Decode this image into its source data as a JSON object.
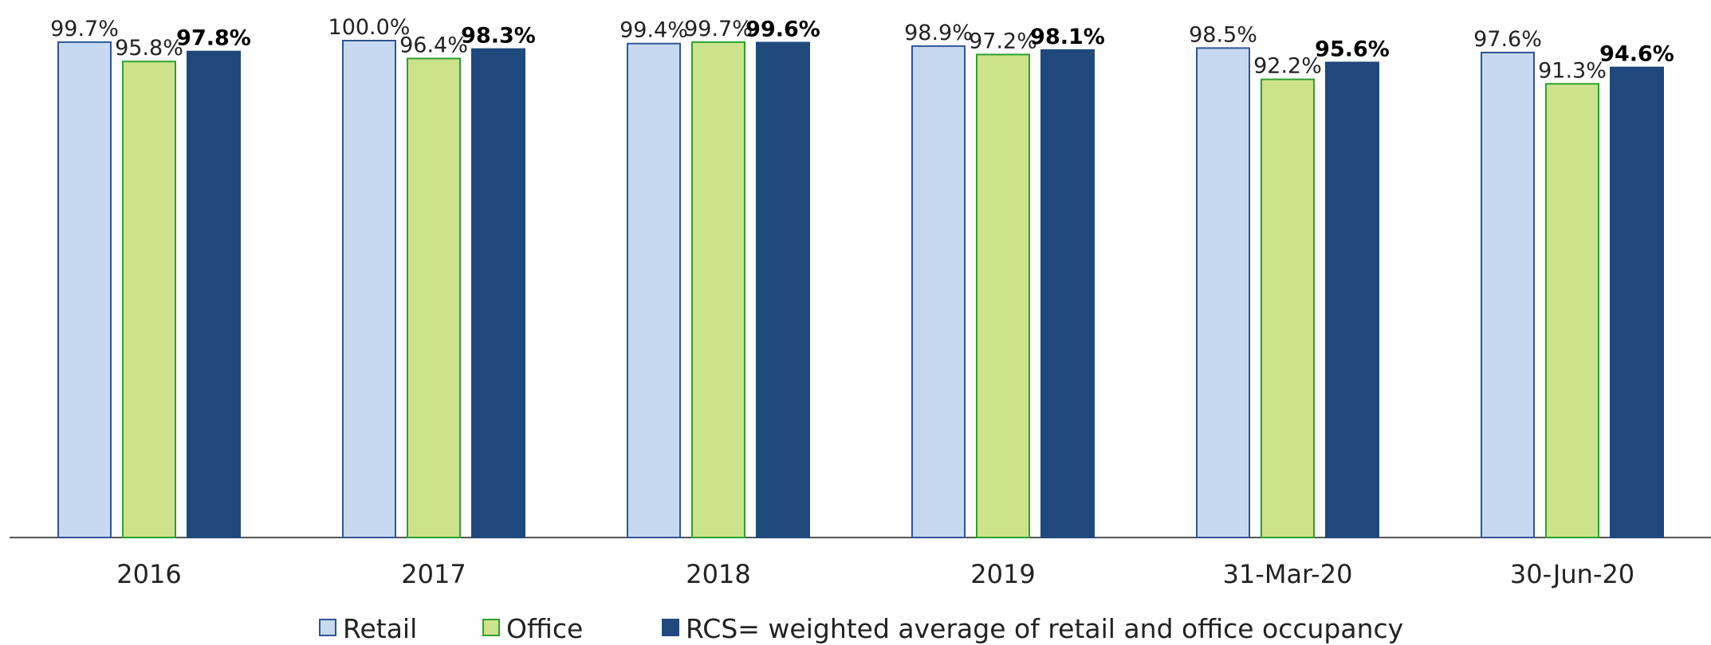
{
  "chart_data": {
    "type": "bar",
    "categories": [
      "2016",
      "2017",
      "2018",
      "2019",
      "31-Mar-20",
      "30-Jun-20"
    ],
    "series": [
      {
        "name": "Retail",
        "color": "#c6d9f1",
        "edge": "#2f5597",
        "values": [
          99.7,
          100.0,
          99.4,
          98.9,
          98.5,
          97.6
        ],
        "value_labels": [
          "99.7%",
          "100.0%",
          "99.4%",
          "98.9%",
          "98.5%",
          "97.6%"
        ]
      },
      {
        "name": "Office",
        "color": "#cde38b",
        "edge": "#2ca02c",
        "values": [
          95.8,
          96.4,
          99.7,
          97.2,
          92.2,
          91.3
        ],
        "value_labels": [
          "95.8%",
          "96.4%",
          "99.7%",
          "97.2%",
          "92.2%",
          "91.3%"
        ]
      },
      {
        "name": "RCS= weighted average of retail and office occupancy",
        "color": "#1f497d",
        "edge": "#1f497d",
        "bold": true,
        "values": [
          97.8,
          98.3,
          99.6,
          98.1,
          95.6,
          94.6
        ],
        "value_labels": [
          "97.8%",
          "98.3%",
          "99.6%",
          "98.1%",
          "95.6%",
          "94.6%"
        ]
      }
    ],
    "ylim": [
      0,
      100
    ]
  }
}
